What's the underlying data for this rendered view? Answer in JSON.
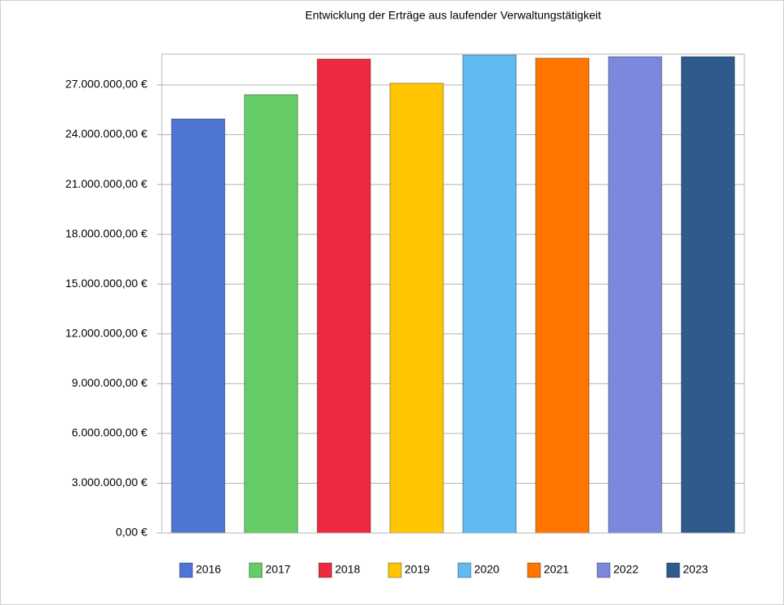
{
  "chart_data": {
    "type": "bar",
    "title": "Entwicklung der Erträge aus laufender Verwaltungstätigkeit",
    "categories": [
      null
    ],
    "series": [
      {
        "name": "2016",
        "color": "#4f76d4",
        "values": [
          24950000
        ]
      },
      {
        "name": "2017",
        "color": "#66cc66",
        "values": [
          26410000
        ]
      },
      {
        "name": "2018",
        "color": "#ec2a40",
        "values": [
          28560000
        ]
      },
      {
        "name": "2019",
        "color": "#ffc600",
        "values": [
          27100000
        ]
      },
      {
        "name": "2020",
        "color": "#62bbf0",
        "values": [
          28800000
        ]
      },
      {
        "name": "2021",
        "color": "#ff7500",
        "values": [
          28610000
        ]
      },
      {
        "name": "2022",
        "color": "#7b88de",
        "values": [
          28700000
        ]
      },
      {
        "name": "2023",
        "color": "#2e5b8c",
        "values": [
          28700000
        ]
      }
    ],
    "ylim": [
      0,
      28850000
    ],
    "yticks": [
      {
        "value": 0,
        "label": "0,00 €"
      },
      {
        "value": 3000000,
        "label": "3.000.000,00 €"
      },
      {
        "value": 6000000,
        "label": "6.000.000,00 €"
      },
      {
        "value": 9000000,
        "label": "9.000.000,00 €"
      },
      {
        "value": 12000000,
        "label": "12.000.000,00 €"
      },
      {
        "value": 15000000,
        "label": "15.000.000,00 €"
      },
      {
        "value": 18000000,
        "label": "18.000.000,00 €"
      },
      {
        "value": 21000000,
        "label": "21.000.000,00 €"
      },
      {
        "value": 24000000,
        "label": "24.000.000,00 €"
      },
      {
        "value": 27000000,
        "label": "27.000.000,00 €"
      }
    ],
    "grid": true,
    "legend": "bottom"
  }
}
